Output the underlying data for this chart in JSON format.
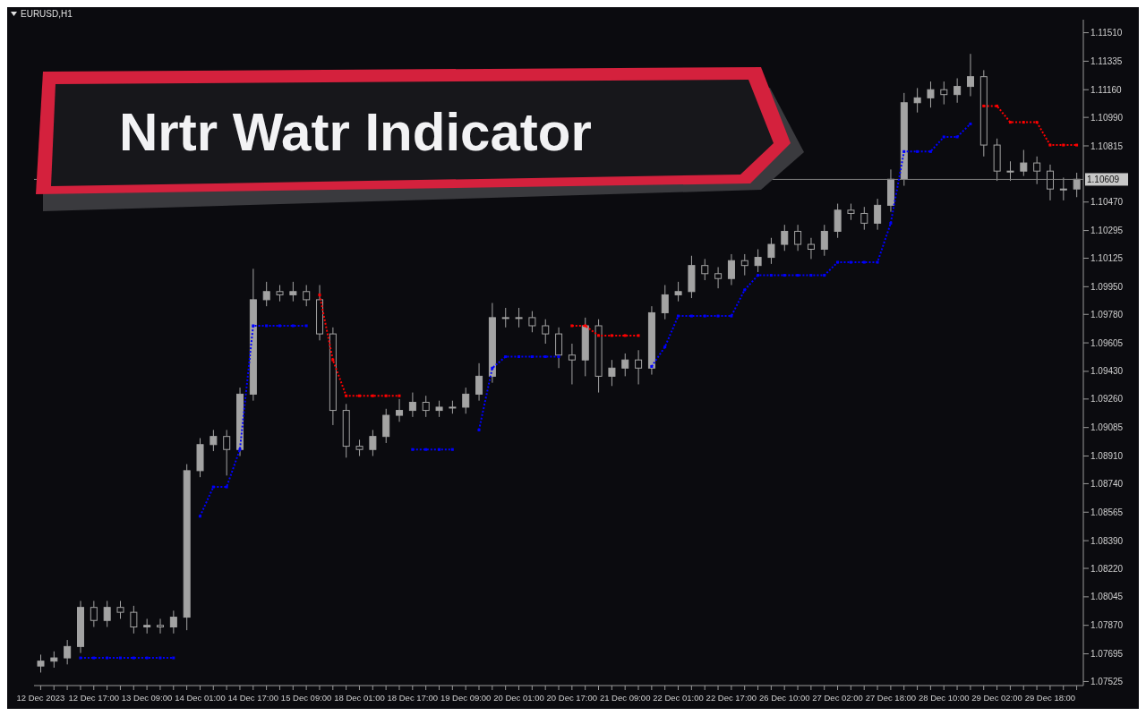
{
  "chart_data": {
    "type": "candlestick",
    "title": "Nrtr Watr Indicator",
    "subtitle": "EURUSD,H1",
    "categories": [
      "12 Dec 2023",
      null,
      null,
      null,
      "12 Dec 17:00",
      null,
      null,
      null,
      "13 Dec 09:00",
      null,
      null,
      null,
      "14 Dec 01:00",
      null,
      null,
      null,
      "14 Dec 17:00",
      null,
      null,
      null,
      "15 Dec 09:00",
      null,
      null,
      null,
      "18 Dec 01:00",
      null,
      null,
      null,
      "18 Dec 17:00",
      null,
      null,
      null,
      "19 Dec 09:00",
      null,
      null,
      null,
      "20 Dec 01:00",
      null,
      null,
      null,
      "20 Dec 17:00",
      null,
      null,
      null,
      "21 Dec 09:00",
      null,
      null,
      null,
      "22 Dec 01:00",
      null,
      null,
      null,
      "22 Dec 17:00",
      null,
      null,
      null,
      "26 Dec 10:00",
      null,
      null,
      null,
      "27 Dec 02:00",
      null,
      null,
      null,
      "27 Dec 18:00",
      null,
      null,
      null,
      "28 Dec 10:00",
      null,
      null,
      null,
      "29 Dec 02:00",
      null,
      null,
      null,
      "29 Dec 18:00",
      null,
      null
    ],
    "color": "#a3a3a3",
    "ohlc": [
      [
        1.0762,
        1.0769,
        1.0758,
        1.0765
      ],
      [
        1.0765,
        1.0771,
        1.0761,
        1.0767
      ],
      [
        1.0767,
        1.0778,
        1.0763,
        1.0774
      ],
      [
        1.0774,
        1.0802,
        1.077,
        1.0798
      ],
      [
        1.0798,
        1.0802,
        1.0786,
        1.079
      ],
      [
        1.079,
        1.0802,
        1.0786,
        1.0798
      ],
      [
        1.0798,
        1.0802,
        1.0791,
        1.0795
      ],
      [
        1.0795,
        1.0799,
        1.0782,
        1.0786
      ],
      [
        1.0786,
        1.0791,
        1.0782,
        1.0787
      ],
      [
        1.0787,
        1.0791,
        1.0782,
        1.0786
      ],
      [
        1.0786,
        1.0796,
        1.0782,
        1.0792
      ],
      [
        1.0792,
        1.0886,
        1.0784,
        1.0882
      ],
      [
        1.0882,
        1.0902,
        1.0878,
        1.0898
      ],
      [
        1.0898,
        1.0907,
        1.0894,
        1.0903
      ],
      [
        1.0903,
        1.0907,
        1.0879,
        1.0895
      ],
      [
        1.0895,
        1.0933,
        1.0891,
        1.0929
      ],
      [
        1.0929,
        1.1006,
        1.0925,
        1.0987
      ],
      [
        1.0987,
        1.0998,
        1.0983,
        1.0992
      ],
      [
        1.0992,
        1.0996,
        1.0986,
        1.099
      ],
      [
        1.099,
        1.0998,
        1.0986,
        1.0992
      ],
      [
        1.0992,
        1.0996,
        1.0983,
        1.0987
      ],
      [
        1.0987,
        1.0996,
        1.0962,
        1.0966
      ],
      [
        1.0966,
        1.097,
        1.091,
        1.0919
      ],
      [
        1.0919,
        1.0923,
        1.089,
        1.0897
      ],
      [
        1.0897,
        1.0901,
        1.0891,
        1.0895
      ],
      [
        1.0895,
        1.0907,
        1.0891,
        1.0903
      ],
      [
        1.0903,
        1.092,
        1.0899,
        1.0916
      ],
      [
        1.0916,
        1.0926,
        1.0912,
        1.0919
      ],
      [
        1.0919,
        1.093,
        1.0915,
        1.0924
      ],
      [
        1.0924,
        1.0928,
        1.0915,
        1.0919
      ],
      [
        1.0919,
        1.0925,
        1.0915,
        1.0921
      ],
      [
        1.0921,
        1.0925,
        1.0917,
        1.0921
      ],
      [
        1.0921,
        1.0933,
        1.0917,
        1.0929
      ],
      [
        1.0929,
        1.0948,
        1.0925,
        1.094
      ],
      [
        1.094,
        1.0985,
        1.0936,
        1.0976
      ],
      [
        1.0976,
        1.0982,
        1.097,
        1.0976
      ],
      [
        1.0976,
        1.0982,
        1.097,
        1.0976
      ],
      [
        1.0976,
        1.098,
        1.0967,
        1.0971
      ],
      [
        1.0971,
        1.0975,
        1.096,
        1.0966
      ],
      [
        1.0966,
        1.097,
        1.0945,
        1.0953
      ],
      [
        1.0953,
        1.096,
        1.0935,
        1.095
      ],
      [
        1.095,
        1.0976,
        1.094,
        1.0971
      ],
      [
        1.0971,
        1.0975,
        1.093,
        1.094
      ],
      [
        1.094,
        1.095,
        1.0934,
        1.0945
      ],
      [
        1.0945,
        1.0954,
        1.094,
        1.095
      ],
      [
        1.095,
        1.0956,
        1.0935,
        1.0945
      ],
      [
        1.0945,
        1.0983,
        1.0941,
        1.0979
      ],
      [
        1.0979,
        1.0996,
        1.0975,
        1.099
      ],
      [
        1.099,
        1.0998,
        1.0986,
        1.0992
      ],
      [
        1.0992,
        1.1014,
        1.0988,
        1.1008
      ],
      [
        1.1008,
        1.1012,
        1.0999,
        1.1003
      ],
      [
        1.1003,
        1.1007,
        1.0994,
        1.1
      ],
      [
        1.1,
        1.1015,
        1.0996,
        1.1011
      ],
      [
        1.1011,
        1.1015,
        1.1002,
        1.1008
      ],
      [
        1.1008,
        1.1018,
        1.1004,
        1.1013
      ],
      [
        1.1013,
        1.1025,
        1.1009,
        1.1021
      ],
      [
        1.1021,
        1.1033,
        1.1017,
        1.1029
      ],
      [
        1.1029,
        1.1033,
        1.1017,
        1.1021
      ],
      [
        1.1021,
        1.1025,
        1.1012,
        1.1018
      ],
      [
        1.1018,
        1.1033,
        1.1014,
        1.1029
      ],
      [
        1.1029,
        1.1046,
        1.1025,
        1.1042
      ],
      [
        1.1042,
        1.1046,
        1.1036,
        1.104
      ],
      [
        1.104,
        1.1044,
        1.103,
        1.1034
      ],
      [
        1.1034,
        1.1049,
        1.103,
        1.1045
      ],
      [
        1.1045,
        1.1067,
        1.1041,
        1.1061
      ],
      [
        1.1061,
        1.1114,
        1.1057,
        1.1108
      ],
      [
        1.1108,
        1.1117,
        1.1102,
        1.1111
      ],
      [
        1.1111,
        1.1121,
        1.1105,
        1.1116
      ],
      [
        1.1116,
        1.1121,
        1.1107,
        1.1113
      ],
      [
        1.1113,
        1.1123,
        1.1108,
        1.1118
      ],
      [
        1.1118,
        1.1138,
        1.1112,
        1.1124
      ],
      [
        1.1124,
        1.1128,
        1.1075,
        1.1082
      ],
      [
        1.1082,
        1.1086,
        1.106,
        1.1066
      ],
      [
        1.1066,
        1.1072,
        1.106,
        1.1066
      ],
      [
        1.1066,
        1.1079,
        1.1063,
        1.1071
      ],
      [
        1.1071,
        1.1075,
        1.1058,
        1.1066
      ],
      [
        1.1066,
        1.107,
        1.1048,
        1.1055
      ],
      [
        1.1055,
        1.1062,
        1.1048,
        1.1055
      ],
      [
        1.1055,
        1.1065,
        1.105,
        1.1061
      ]
    ],
    "series": [
      {
        "type": "line",
        "color": "#0000ff",
        "values": [
          null,
          null,
          null,
          1.0767,
          1.0767,
          1.0767,
          1.0767,
          1.0767,
          1.0767,
          1.0767,
          1.0767,
          null,
          1.0854,
          1.0872,
          1.0872,
          1.0895,
          1.0971,
          1.0971,
          1.0971,
          1.0971,
          1.0971,
          null,
          null,
          null,
          null,
          null,
          null,
          null,
          1.0895,
          1.0895,
          1.0895,
          1.0895,
          null,
          1.0907,
          1.0945,
          1.0952,
          1.0952,
          1.0952,
          1.0952,
          1.0952,
          null,
          null,
          null,
          null,
          null,
          null,
          1.0946,
          1.0958,
          1.0977,
          1.0977,
          1.0977,
          1.0977,
          1.0977,
          1.0993,
          1.1002,
          1.1002,
          1.1002,
          1.1002,
          1.1002,
          1.1002,
          1.101,
          1.101,
          1.101,
          1.101,
          1.1034,
          1.1078,
          1.1078,
          1.1078,
          1.1087,
          1.1087,
          1.1095,
          null,
          null,
          null,
          null,
          null,
          null,
          null,
          null
        ]
      },
      {
        "type": "line",
        "color": "#ff0000",
        "values": [
          null,
          null,
          null,
          null,
          null,
          null,
          null,
          null,
          null,
          null,
          null,
          null,
          null,
          null,
          null,
          null,
          null,
          null,
          null,
          null,
          null,
          1.099,
          1.095,
          1.0928,
          1.0928,
          1.0928,
          1.0928,
          1.0928,
          null,
          null,
          null,
          null,
          null,
          null,
          null,
          null,
          null,
          null,
          null,
          null,
          1.0971,
          1.0971,
          1.0965,
          1.0965,
          1.0965,
          1.0965,
          null,
          null,
          null,
          null,
          null,
          null,
          null,
          null,
          null,
          null,
          null,
          null,
          null,
          null,
          null,
          null,
          null,
          null,
          null,
          null,
          null,
          null,
          null,
          null,
          null,
          1.1106,
          1.1106,
          1.1096,
          1.1096,
          1.1096,
          1.1082,
          1.1082,
          1.1082
        ]
      }
    ],
    "marker": "square",
    "line_style": "dotted",
    "grid": false,
    "legend": false,
    "ylim": [
      1.075,
      1.1159
    ],
    "yticks": [
      {
        "value": 1.07525,
        "label": "1.07525"
      },
      {
        "value": 1.07695,
        "label": "1.07695"
      },
      {
        "value": 1.0787,
        "label": "1.07870"
      },
      {
        "value": 1.08045,
        "label": "1.08045"
      },
      {
        "value": 1.0822,
        "label": "1.08220"
      },
      {
        "value": 1.0839,
        "label": "1.08390"
      },
      {
        "value": 1.08565,
        "label": "1.08565"
      },
      {
        "value": 1.0874,
        "label": "1.08740"
      },
      {
        "value": 1.0891,
        "label": "1.08910"
      },
      {
        "value": 1.09085,
        "label": "1.09085"
      },
      {
        "value": 1.0926,
        "label": "1.09260"
      },
      {
        "value": 1.0943,
        "label": "1.09430"
      },
      {
        "value": 1.09605,
        "label": "1.09605"
      },
      {
        "value": 1.0978,
        "label": "1.09780"
      },
      {
        "value": 1.0995,
        "label": "1.09950"
      },
      {
        "value": 1.10125,
        "label": "1.10125"
      },
      {
        "value": 1.10295,
        "label": "1.10295"
      },
      {
        "value": 1.1047,
        "label": "1.10470"
      },
      {
        "value": 1.10815,
        "label": "1.10815"
      },
      {
        "value": 1.1099,
        "label": "1.10990"
      },
      {
        "value": 1.1116,
        "label": "1.11160"
      },
      {
        "value": 1.11335,
        "label": "1.11335"
      },
      {
        "value": 1.1151,
        "label": "1.11510"
      }
    ],
    "ref_lines": [
      {
        "axis": "y",
        "value": 1.10609,
        "label": "1.10609",
        "color": "#808080"
      }
    ]
  }
}
